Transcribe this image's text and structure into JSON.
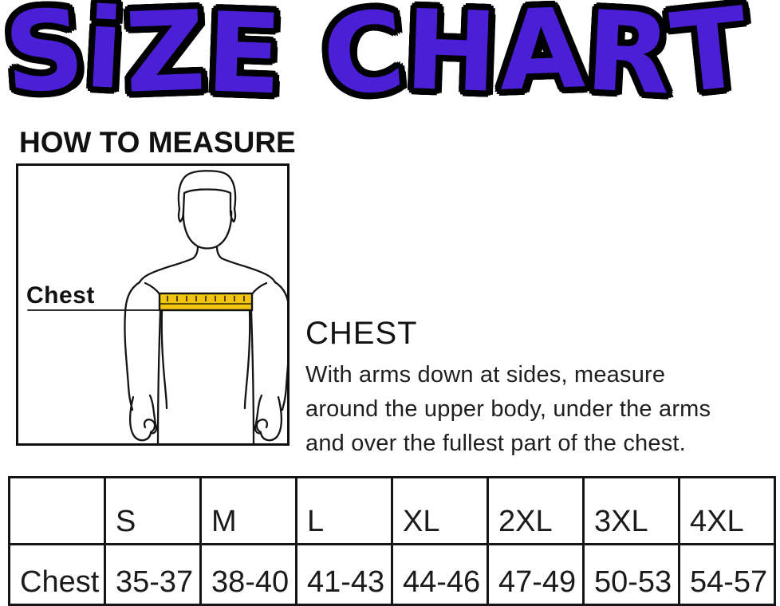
{
  "colors": {
    "title_fill": "#4a1fd6",
    "title_outline": "#000000",
    "tape": "#f2c511",
    "ink": "#1b1b1b"
  },
  "title": {
    "text": "SiZE CHART"
  },
  "sections": {
    "how_to_measure": {
      "heading": "HOW TO MEASURE"
    },
    "diagram": {
      "label": "Chest"
    },
    "chest": {
      "heading": "CHEST",
      "lines": [
        "With arms down at sides, measure",
        "around the upper body, under the arms",
        "and over the fullest part of the chest."
      ]
    }
  },
  "size_table": {
    "row_label": "Chest",
    "columns": [
      "S",
      "M",
      "L",
      "XL",
      "2XL",
      "3XL",
      "4XL"
    ],
    "values": [
      "35-37",
      "38-40",
      "41-43",
      "44-46",
      "47-49",
      "50-53",
      "54-57"
    ]
  }
}
